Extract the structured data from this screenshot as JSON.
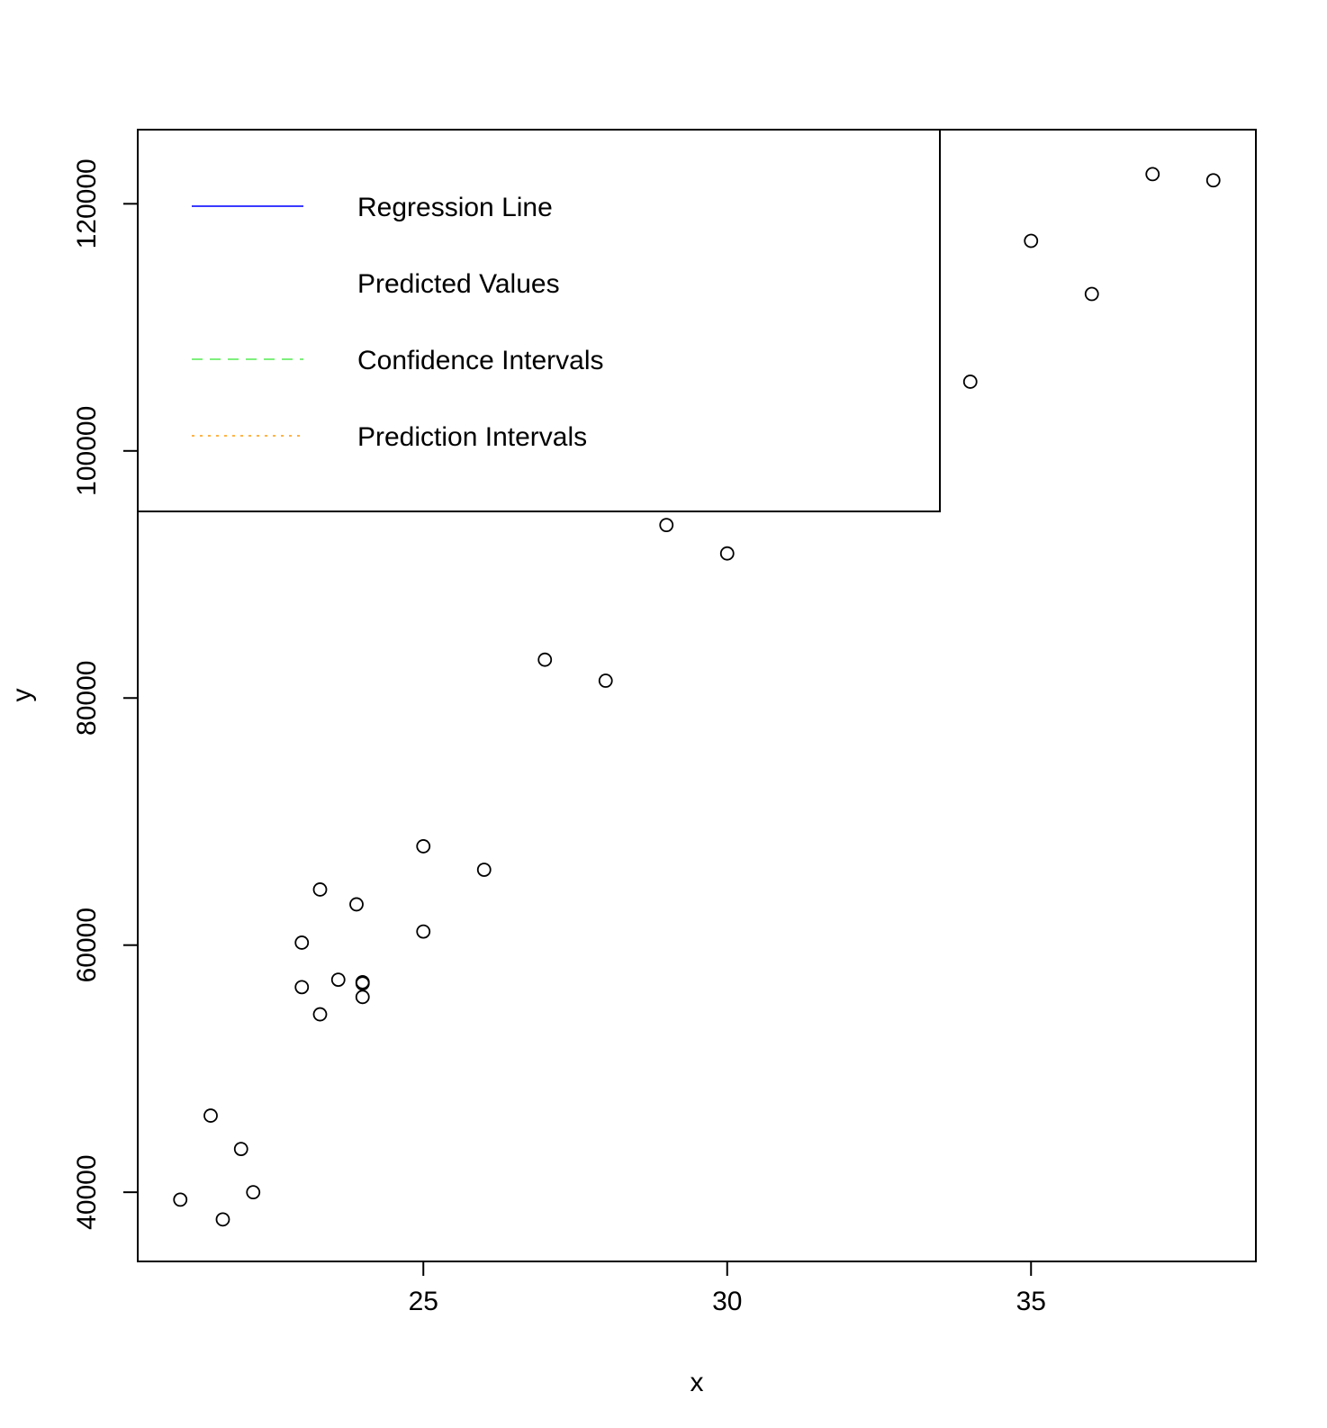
{
  "chart_data": {
    "type": "scatter",
    "xlabel": "x",
    "ylabel": "y",
    "xlim": [
      20.3,
      38.7
    ],
    "ylim": [
      34400,
      126000
    ],
    "x_ticks": [
      25,
      30,
      35
    ],
    "y_ticks": [
      40000,
      60000,
      80000,
      100000,
      120000
    ],
    "x_tick_labels": [
      "25",
      "30",
      "35"
    ],
    "y_tick_labels": [
      "40000",
      "60000",
      "80000",
      "100000",
      "120000"
    ],
    "grid": false,
    "points": [
      {
        "x": 21.0,
        "y": 39400
      },
      {
        "x": 21.5,
        "y": 46200
      },
      {
        "x": 21.7,
        "y": 37800
      },
      {
        "x": 22.0,
        "y": 43500
      },
      {
        "x": 22.2,
        "y": 40000
      },
      {
        "x": 23.0,
        "y": 60200
      },
      {
        "x": 23.0,
        "y": 56600
      },
      {
        "x": 23.3,
        "y": 64500
      },
      {
        "x": 23.3,
        "y": 54400
      },
      {
        "x": 23.6,
        "y": 57200
      },
      {
        "x": 23.9,
        "y": 63300
      },
      {
        "x": 24.0,
        "y": 57000
      },
      {
        "x": 24.0,
        "y": 56900
      },
      {
        "x": 24.0,
        "y": 55800
      },
      {
        "x": 25.0,
        "y": 68000
      },
      {
        "x": 25.0,
        "y": 61100
      },
      {
        "x": 26.0,
        "y": 66100
      },
      {
        "x": 27.0,
        "y": 83100
      },
      {
        "x": 28.0,
        "y": 81400
      },
      {
        "x": 29.0,
        "y": 94000
      },
      {
        "x": 30.0,
        "y": 91700
      },
      {
        "x": 34.0,
        "y": 105600
      },
      {
        "x": 35.0,
        "y": 117000
      },
      {
        "x": 36.0,
        "y": 112700
      },
      {
        "x": 37.0,
        "y": 122400
      },
      {
        "x": 38.0,
        "y": 121900
      }
    ],
    "legend": {
      "placement": "top-left",
      "entries": [
        {
          "label": "Regression Line",
          "color": "#3b3bff",
          "line_style": "solid"
        },
        {
          "label": "Predicted Values",
          "color": "",
          "line_style": "none"
        },
        {
          "label": "Confidence Intervals",
          "color": "#7ef07e",
          "line_style": "dashed"
        },
        {
          "label": "Prediction Intervals",
          "color": "#ffb347",
          "line_style": "dotted"
        }
      ]
    }
  }
}
